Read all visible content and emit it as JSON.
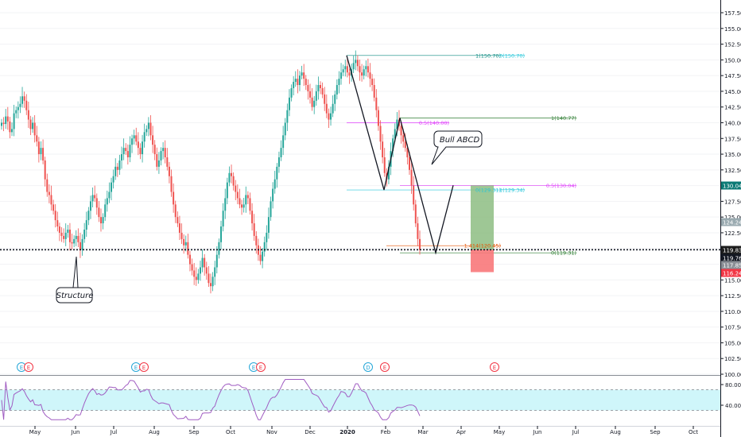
{
  "chart_data": {
    "type": "candlestick",
    "price_axis": {
      "ticks": [
        "157.50",
        "155.00",
        "152.50",
        "150.00",
        "147.50",
        "145.00",
        "142.50",
        "140.00",
        "137.50",
        "135.00",
        "132.50",
        "130.00",
        "127.50",
        "125.00",
        "122.50",
        "120.00",
        "117.50",
        "115.00",
        "112.50",
        "110.00",
        "107.50",
        "105.00",
        "102.50",
        "100.00"
      ],
      "ylim": [
        99.5,
        158.5
      ]
    },
    "rsi_axis": {
      "ticks": [
        "80.00",
        "40.00"
      ],
      "band": [
        30,
        70
      ],
      "ylim": [
        10,
        90
      ]
    },
    "time_axis": {
      "ticks": [
        "May",
        "Jun",
        "Jul",
        "Aug",
        "Sep",
        "Oct",
        "Nov",
        "Dec",
        "2020",
        "Feb",
        "Mar",
        "Apr",
        "May",
        "Jun",
        "Jul",
        "Aug",
        "Sep",
        "Oct"
      ],
      "bold": "2020"
    },
    "price_labels": [
      {
        "text": "130.04",
        "value": 130.04,
        "color": "#0b7a75"
      },
      {
        "text": "124.24",
        "value": 124.24,
        "color": "#9aaab0"
      },
      {
        "text": "119.83",
        "value": 119.83,
        "color": "#1c1c1c"
      },
      {
        "text": "119.76",
        "value": 119.76,
        "color": "#131722"
      },
      {
        "text": "117.85",
        "value": 117.85,
        "color": "#8a8f96"
      },
      {
        "text": "116.24",
        "value": 116.24,
        "color": "#f23645"
      }
    ],
    "levels": [
      {
        "text": "1(150.70)",
        "value": 150.7,
        "color": "#0b8a80",
        "x1": 436,
        "x2": 630
      },
      {
        "text": "0(150.70)",
        "value": 150.7,
        "color": "#26c6da",
        "x1": 630,
        "x2": 660
      },
      {
        "text": "1(140.77)",
        "value": 140.77,
        "color": "#2e7d32",
        "x1": 503,
        "x2": 725
      },
      {
        "text": "0.5(140.00)",
        "value": 140.0,
        "color": "#e040fb",
        "x1": 436,
        "x2": 565
      },
      {
        "text": "0(129.31)",
        "value": 129.31,
        "color": "#26c6da",
        "x1": 436,
        "x2": 630
      },
      {
        "text": "1(129.34)",
        "value": 129.34,
        "color": "#26c6da",
        "x1": 630,
        "x2": 660
      },
      {
        "text": "0.5(130.04)",
        "value": 130.04,
        "color": "#e040fb",
        "x1": 503,
        "x2": 725
      },
      {
        "text": "1.414(120.45)",
        "value": 120.45,
        "color": "#e65100",
        "x1": 486,
        "x2": 630
      },
      {
        "text": "0(119.31)",
        "value": 119.31,
        "color": "#2e7d32",
        "x1": 503,
        "x2": 725
      }
    ],
    "annotations": [
      {
        "text": "Bull ABCD"
      },
      {
        "text": "Structure"
      }
    ],
    "event_markers": [
      {
        "label": "E",
        "color": "#26a7d8"
      },
      {
        "label": "E",
        "color": "#f23645"
      },
      {
        "label": "E",
        "color": "#26a7d8"
      },
      {
        "label": "E",
        "color": "#f23645"
      },
      {
        "label": "E",
        "color": "#26a7d8"
      },
      {
        "label": "E",
        "color": "#f23645"
      },
      {
        "label": "D",
        "color": "#26a7d8"
      },
      {
        "label": "E",
        "color": "#f23645"
      },
      {
        "label": "E",
        "color": "#f23645"
      }
    ],
    "support_level": 119.8,
    "abcd_pattern": [
      {
        "point": "A",
        "value": 150.7
      },
      {
        "point": "B",
        "value": 129.31
      },
      {
        "point": "C",
        "value": 140.77
      },
      {
        "point": "D",
        "value": 119.31
      },
      {
        "point": "E",
        "value": 130.04
      }
    ],
    "position": {
      "entry": 119.83,
      "target": 130.04,
      "stop": 116.24
    },
    "closes": [
      140.0,
      139.8,
      141.0,
      140.2,
      138.5,
      139.0,
      141.5,
      142.0,
      142.5,
      143.0,
      144.2,
      143.5,
      142.0,
      140.5,
      139.0,
      140.0,
      138.0,
      137.0,
      135.0,
      136.0,
      134.0,
      131.0,
      129.0,
      128.5,
      127.0,
      126.0,
      124.5,
      123.5,
      122.5,
      122.0,
      121.5,
      122.5,
      123.0,
      121.0,
      120.8,
      121.5,
      122.0,
      121.0,
      119.8,
      121.5,
      123.0,
      124.5,
      126.0,
      127.5,
      128.5,
      128.0,
      126.5,
      125.0,
      124.0,
      125.0,
      127.0,
      128.0,
      129.0,
      130.5,
      131.5,
      133.0,
      132.5,
      134.0,
      135.0,
      136.0,
      135.5,
      134.5,
      136.5,
      137.5,
      138.0,
      137.0,
      136.0,
      135.0,
      137.0,
      138.5,
      139.0,
      140.0,
      138.0,
      136.5,
      135.0,
      133.0,
      134.0,
      135.5,
      136.0,
      134.5,
      133.0,
      131.5,
      129.0,
      127.0,
      125.0,
      124.0,
      122.5,
      121.5,
      120.5,
      121.0,
      119.0,
      117.5,
      116.5,
      115.5,
      115.0,
      116.0,
      117.0,
      118.5,
      117.0,
      116.0,
      114.5,
      114.0,
      115.5,
      117.0,
      119.0,
      121.0,
      123.5,
      126.0,
      128.0,
      130.5,
      132.0,
      131.5,
      130.0,
      129.0,
      128.0,
      127.0,
      126.5,
      127.0,
      128.5,
      128.0,
      126.0,
      124.0,
      122.0,
      120.5,
      119.0,
      118.0,
      119.5,
      121.0,
      122.5,
      125.0,
      127.5,
      129.5,
      131.0,
      133.0,
      134.5,
      136.0,
      138.0,
      140.0,
      142.0,
      144.0,
      145.5,
      146.5,
      147.0,
      146.0,
      147.5,
      148.0,
      147.0,
      146.0,
      145.0,
      144.0,
      142.5,
      143.5,
      145.0,
      146.0,
      145.5,
      144.5,
      143.0,
      141.5,
      140.5,
      141.5,
      143.0,
      144.5,
      146.0,
      147.0,
      148.0,
      148.5,
      149.0,
      148.0,
      147.5,
      148.5,
      149.5,
      150.0,
      149.0,
      148.0,
      147.5,
      148.5,
      149.0,
      148.0,
      147.0,
      146.0,
      144.0,
      142.0,
      139.5,
      137.0,
      134.5,
      132.0,
      131.0,
      133.0,
      135.5,
      137.5,
      139.0,
      140.5,
      139.5,
      138.0,
      137.0,
      136.0,
      134.5,
      132.5,
      130.0,
      127.0,
      124.0,
      121.5,
      119.8
    ]
  }
}
